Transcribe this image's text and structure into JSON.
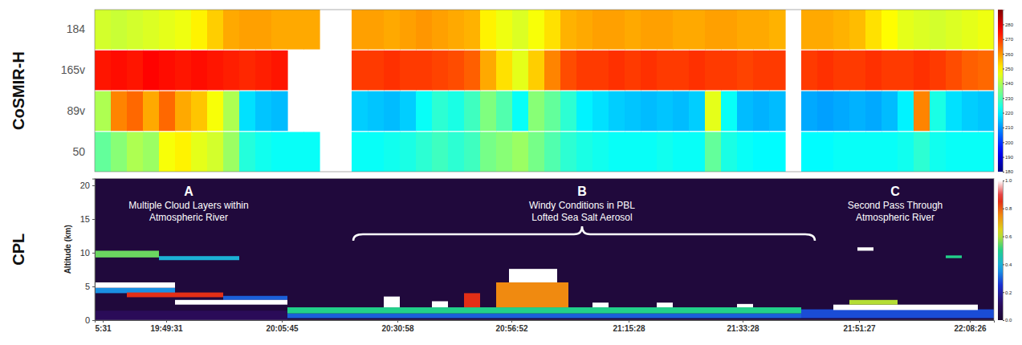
{
  "chart_data": [
    {
      "type": "heatmap",
      "title": "CoSMIR-H",
      "categories": [
        "184",
        "165v",
        "89v",
        "50"
      ],
      "xlim": [
        0,
        56
      ],
      "tick_labels": "y",
      "z": [
        [
          244,
          243,
          244,
          245,
          246,
          247,
          250,
          254,
          258,
          259,
          259,
          258,
          258,
          258,
          null,
          null,
          259,
          259,
          258,
          259,
          260,
          259,
          258,
          257,
          250,
          247,
          245,
          248,
          252,
          257,
          258,
          259,
          259,
          258,
          259,
          259,
          258,
          258,
          259,
          259,
          258,
          258,
          257,
          null,
          258,
          258,
          257,
          256,
          252,
          249,
          246,
          245,
          244,
          245,
          246,
          247
        ],
        [
          274,
          275,
          274,
          276,
          275,
          274,
          275,
          274,
          273,
          272,
          273,
          274,
          null,
          null,
          null,
          null,
          270,
          270,
          271,
          270,
          270,
          269,
          268,
          266,
          258,
          252,
          246,
          254,
          262,
          268,
          270,
          270,
          271,
          270,
          271,
          270,
          270,
          271,
          270,
          270,
          269,
          270,
          270,
          null,
          270,
          271,
          270,
          270,
          271,
          270,
          270,
          271,
          270,
          268,
          266,
          265
        ],
        [
          240,
          262,
          265,
          258,
          265,
          258,
          255,
          248,
          240,
          218,
          215,
          214,
          null,
          null,
          null,
          null,
          216,
          215,
          214,
          216,
          222,
          226,
          224,
          228,
          235,
          230,
          222,
          236,
          232,
          226,
          220,
          218,
          216,
          215,
          214,
          215,
          214,
          216,
          246,
          222,
          214,
          213,
          214,
          null,
          212,
          211,
          212,
          213,
          212,
          214,
          220,
          262,
          224,
          218,
          216,
          215
        ],
        [
          232,
          236,
          240,
          238,
          248,
          250,
          246,
          244,
          238,
          225,
          223,
          222,
          222,
          222,
          null,
          null,
          222,
          222,
          223,
          224,
          226,
          228,
          226,
          228,
          234,
          236,
          238,
          234,
          230,
          226,
          224,
          223,
          222,
          222,
          222,
          223,
          222,
          222,
          232,
          224,
          222,
          221,
          221,
          null,
          221,
          221,
          222,
          222,
          222,
          222,
          223,
          226,
          223,
          222,
          222,
          222
        ]
      ],
      "colorbar": {
        "range": [
          180,
          290
        ],
        "ticks": [
          180,
          190,
          200,
          210,
          220,
          230,
          240,
          250,
          260,
          270,
          280
        ]
      }
    },
    {
      "type": "heatmap",
      "title": "CPL",
      "ylabel": "Altitude (km)",
      "xlim": [
        0,
        56
      ],
      "ylim": [
        0,
        21
      ],
      "yticks": [
        0,
        5,
        10,
        15,
        20
      ],
      "xticks": [
        {
          "value": 0.5,
          "label": "5:31"
        },
        {
          "value": 4.45,
          "label": "19:49:31"
        },
        {
          "value": 11.65,
          "label": "20:05:45"
        },
        {
          "value": 18.85,
          "label": "20:30:58"
        },
        {
          "value": 25.95,
          "label": "20:56:52"
        },
        {
          "value": 33.25,
          "label": "21:15:28"
        },
        {
          "value": 40.35,
          "label": "21:33:28"
        },
        {
          "value": 47.6,
          "label": "21:51:27"
        },
        {
          "value": 54.5,
          "label": "22:08:26"
        }
      ],
      "cells": [
        [
          0,
          56,
          0,
          21,
          0.03
        ],
        [
          0,
          12,
          0,
          1.4,
          0.1
        ],
        [
          12,
          44,
          0.3,
          1.0,
          0.3
        ],
        [
          12,
          44,
          1.0,
          1.9,
          0.5
        ],
        [
          44,
          56,
          0.3,
          1.6,
          0.28
        ],
        [
          0,
          4,
          9.3,
          10.3,
          0.55
        ],
        [
          4,
          9,
          8.9,
          9.5,
          0.4
        ],
        [
          0,
          5,
          4.0,
          4.8,
          0.35
        ],
        [
          0,
          5,
          4.8,
          5.6,
          1.0
        ],
        [
          8,
          12,
          3.0,
          3.6,
          0.3
        ],
        [
          2,
          8,
          3.4,
          4.1,
          0.85
        ],
        [
          5,
          12,
          2.3,
          3.0,
          1.0
        ],
        [
          25,
          29.5,
          1.9,
          5.6,
          0.75
        ],
        [
          25.8,
          28.8,
          5.6,
          7.6,
          1.0
        ],
        [
          18,
          19,
          1.9,
          3.5,
          1.0
        ],
        [
          21,
          22,
          1.9,
          2.8,
          1.0
        ],
        [
          23,
          24,
          1.9,
          4.0,
          0.85
        ],
        [
          31,
          32,
          1.9,
          2.6,
          1.0
        ],
        [
          35,
          36,
          1.9,
          2.6,
          1.0
        ],
        [
          40,
          41,
          1.9,
          2.4,
          1.0
        ],
        [
          46,
          55,
          1.5,
          2.3,
          1.0
        ],
        [
          47,
          50,
          2.3,
          3.0,
          0.6
        ],
        [
          47.5,
          48.5,
          10.3,
          10.8,
          1.0
        ],
        [
          53,
          54,
          9.2,
          9.6,
          0.5
        ]
      ],
      "colorbar": {
        "range": [
          0,
          1
        ],
        "ticks": [
          {
            "value": 0,
            "label": "0.0"
          },
          {
            "value": 0.2,
            "label": "0.2"
          },
          {
            "value": 0.4,
            "label": "0.4"
          },
          {
            "value": 0.6,
            "label": "0.6"
          },
          {
            "value": 0.8,
            "label": "0.8"
          },
          {
            "value": 1,
            "label": "1.0"
          }
        ]
      },
      "annotations": [
        {
          "label": "A",
          "text": [
            "Multiple Cloud Layers within",
            "Atmospheric River"
          ],
          "x": 5.85
        },
        {
          "label": "B",
          "text": [
            "Windy Conditions in PBL",
            "Lofted Sea Salt Aerosol"
          ],
          "x": 30.35,
          "span": [
            16.1,
            44.85
          ]
        },
        {
          "label": "C",
          "text": [
            "Second Pass Through",
            "Atmospheric River"
          ],
          "x": 49.85
        }
      ]
    }
  ]
}
